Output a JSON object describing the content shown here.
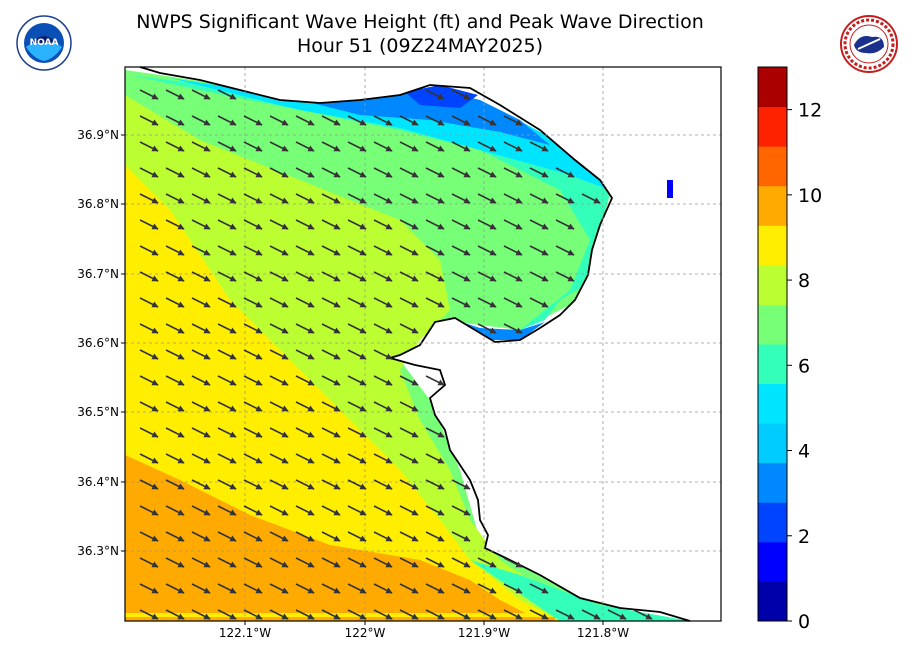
{
  "title": {
    "line1": "NWPS Significant Wave Height (ft) and Peak Wave Direction",
    "line2": "Hour 51 (09Z24MAY2025)"
  },
  "logos": {
    "left": "noaa-logo",
    "right": "nws-logo",
    "left_text": "NOAA",
    "right_text": "NATIONAL WEATHER SERVICE"
  },
  "map": {
    "lat_labels": [
      "36.9°N",
      "36.8°N",
      "36.7°N",
      "36.6°N",
      "36.5°N",
      "36.4°N",
      "36.3°N"
    ],
    "lon_labels": [
      "122.1°W",
      "122°W",
      "121.9°W",
      "121.8°W"
    ],
    "land_color": "#ffffff",
    "coast_color": "#000000",
    "grid": true,
    "arrow_direction": "southeast"
  },
  "colorbar": {
    "ticks": [
      "0",
      "2",
      "4",
      "6",
      "8",
      "10",
      "12"
    ],
    "range": [
      0,
      13
    ],
    "colors": [
      "#0000aa",
      "#0000ff",
      "#0044ff",
      "#0088ff",
      "#00ccff",
      "#00e5ff",
      "#33ffbb",
      "#77ff77",
      "#bbff33",
      "#ffee00",
      "#ffaa00",
      "#ff6600",
      "#ff2200",
      "#aa0000"
    ]
  }
}
